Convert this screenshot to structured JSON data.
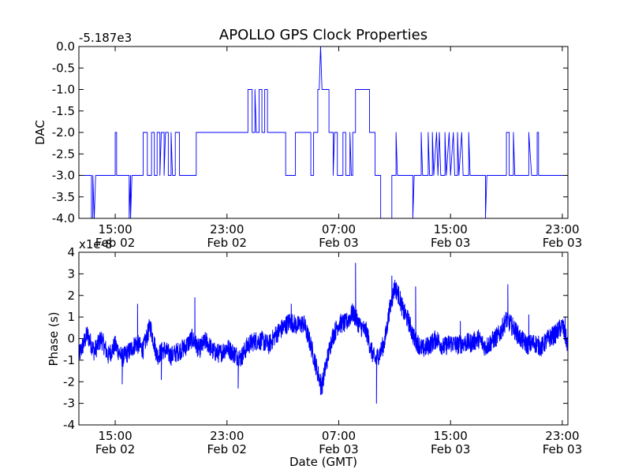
{
  "title": "APOLLO GPS Clock Properties",
  "chart_data": [
    {
      "type": "line",
      "name": "dac",
      "ylabel": "DAC",
      "offset_label": "-5.187e3",
      "ylim": [
        -4.0,
        0.0
      ],
      "yticks": [
        0.0,
        -0.5,
        -1.0,
        -1.5,
        -2.0,
        -2.5,
        -3.0,
        -3.5,
        -4.0
      ],
      "ytick_labels": [
        "0.0",
        "-0.5",
        "-1.0",
        "-1.5",
        "-2.0",
        "-2.5",
        "-3.0",
        "-3.5",
        "-4.0"
      ],
      "xlim_hours": [
        12.4,
        47.4
      ],
      "xticks_hours": [
        15,
        23,
        31,
        39,
        47
      ],
      "xtick_labels": [
        [
          "15:00",
          "Feb 02"
        ],
        [
          "23:00",
          "Feb 02"
        ],
        [
          "07:00",
          "Feb 03"
        ],
        [
          "15:00",
          "Feb 03"
        ],
        [
          "23:00",
          "Feb 03"
        ]
      ],
      "series": [
        {
          "name": "DAC",
          "color": "#0000ff",
          "points": [
            [
              12.4,
              -3
            ],
            [
              13.3,
              -3
            ],
            [
              13.3,
              -4
            ],
            [
              13.4,
              -4
            ],
            [
              13.4,
              -3
            ],
            [
              13.5,
              -4
            ],
            [
              13.6,
              -3
            ],
            [
              15.0,
              -3
            ],
            [
              15.0,
              -2
            ],
            [
              15.1,
              -2
            ],
            [
              15.1,
              -3
            ],
            [
              16.0,
              -3
            ],
            [
              16.0,
              -4
            ],
            [
              16.1,
              -3
            ],
            [
              16.1,
              -4
            ],
            [
              16.2,
              -3
            ],
            [
              17.0,
              -3
            ],
            [
              17.0,
              -2
            ],
            [
              17.3,
              -2
            ],
            [
              17.3,
              -3
            ],
            [
              17.6,
              -3
            ],
            [
              17.6,
              -2
            ],
            [
              17.8,
              -2
            ],
            [
              17.8,
              -3
            ],
            [
              18.0,
              -3
            ],
            [
              18.0,
              -2
            ],
            [
              18.2,
              -2
            ],
            [
              18.2,
              -3
            ],
            [
              18.3,
              -2
            ],
            [
              18.5,
              -2
            ],
            [
              18.5,
              -3
            ],
            [
              18.6,
              -2
            ],
            [
              18.8,
              -2
            ],
            [
              18.8,
              -3
            ],
            [
              19.0,
              -3
            ],
            [
              19.0,
              -2
            ],
            [
              19.1,
              -3
            ],
            [
              19.3,
              -3
            ],
            [
              19.3,
              -2
            ],
            [
              19.6,
              -2
            ],
            [
              19.6,
              -3
            ],
            [
              20.8,
              -3
            ],
            [
              20.8,
              -2
            ],
            [
              23.0,
              -2
            ],
            [
              23.0,
              -2
            ],
            [
              24.5,
              -2
            ],
            [
              24.5,
              -1
            ],
            [
              24.8,
              -1
            ],
            [
              24.8,
              -2
            ],
            [
              25.0,
              -2
            ],
            [
              25.0,
              -1
            ],
            [
              25.1,
              -2
            ],
            [
              25.3,
              -2
            ],
            [
              25.3,
              -1
            ],
            [
              25.5,
              -1
            ],
            [
              25.5,
              -2
            ],
            [
              25.7,
              -2
            ],
            [
              25.7,
              -1
            ],
            [
              25.9,
              -1
            ],
            [
              25.9,
              -2
            ],
            [
              27.2,
              -2
            ],
            [
              27.2,
              -3
            ],
            [
              27.9,
              -3
            ],
            [
              27.9,
              -2
            ],
            [
              29.0,
              -2
            ],
            [
              29.0,
              -3
            ],
            [
              29.2,
              -3
            ],
            [
              29.2,
              -2
            ],
            [
              29.5,
              -2
            ],
            [
              29.5,
              -1
            ],
            [
              29.6,
              -1
            ],
            [
              29.7,
              0
            ],
            [
              29.8,
              -1
            ],
            [
              30.3,
              -1
            ],
            [
              30.3,
              -2
            ],
            [
              30.6,
              -2
            ],
            [
              30.6,
              -3
            ],
            [
              30.7,
              -2
            ],
            [
              30.9,
              -2
            ],
            [
              30.9,
              -3
            ],
            [
              31.3,
              -3
            ],
            [
              31.3,
              -2
            ],
            [
              31.5,
              -2
            ],
            [
              31.5,
              -3
            ],
            [
              31.8,
              -3
            ],
            [
              31.8,
              -2
            ],
            [
              31.9,
              -3
            ],
            [
              32.0,
              -3
            ],
            [
              32.0,
              -2
            ],
            [
              32.2,
              -2
            ],
            [
              32.2,
              -1
            ],
            [
              33.2,
              -1
            ],
            [
              33.2,
              -2
            ],
            [
              33.6,
              -2
            ],
            [
              33.6,
              -3
            ],
            [
              34.0,
              -3
            ],
            [
              34.0,
              -4
            ],
            [
              34.8,
              -4
            ],
            [
              34.8,
              -3
            ],
            [
              35.1,
              -3
            ],
            [
              35.1,
              -2
            ],
            [
              35.2,
              -3
            ],
            [
              36.3,
              -3
            ],
            [
              36.3,
              -4
            ],
            [
              36.4,
              -3
            ],
            [
              36.9,
              -3
            ],
            [
              36.9,
              -2
            ],
            [
              37.0,
              -3
            ],
            [
              37.4,
              -3
            ],
            [
              37.4,
              -2
            ],
            [
              37.5,
              -3
            ],
            [
              37.7,
              -3
            ],
            [
              37.7,
              -2
            ],
            [
              37.8,
              -3
            ],
            [
              38.0,
              -2
            ],
            [
              38.1,
              -3
            ],
            [
              38.2,
              -2
            ],
            [
              38.3,
              -3
            ],
            [
              38.6,
              -3
            ],
            [
              38.6,
              -2
            ],
            [
              38.7,
              -3
            ],
            [
              38.9,
              -2
            ],
            [
              39.0,
              -3
            ],
            [
              39.2,
              -2
            ],
            [
              39.3,
              -3
            ],
            [
              39.5,
              -3
            ],
            [
              39.5,
              -2
            ],
            [
              39.6,
              -3
            ],
            [
              39.8,
              -2
            ],
            [
              39.9,
              -3
            ],
            [
              40.3,
              -3
            ],
            [
              40.3,
              -2
            ],
            [
              40.4,
              -3
            ],
            [
              41.5,
              -3
            ],
            [
              41.5,
              -4
            ],
            [
              41.6,
              -3
            ],
            [
              43.0,
              -3
            ],
            [
              43.0,
              -2
            ],
            [
              43.2,
              -2
            ],
            [
              43.2,
              -3
            ],
            [
              43.5,
              -3
            ],
            [
              43.5,
              -2
            ],
            [
              43.6,
              -3
            ],
            [
              44.6,
              -3
            ],
            [
              44.6,
              -2
            ],
            [
              44.8,
              -3
            ],
            [
              45.2,
              -3
            ],
            [
              45.2,
              -2
            ],
            [
              45.3,
              -2
            ],
            [
              45.3,
              -3
            ],
            [
              47.4,
              -3
            ]
          ]
        }
      ]
    },
    {
      "type": "line",
      "name": "phase",
      "ylabel": "Phase (s)",
      "xlabel": "Date (GMT)",
      "offset_label": "x1e-8",
      "ylim": [
        -4,
        4
      ],
      "yticks": [
        4,
        3,
        2,
        1,
        0,
        -1,
        -2,
        -3,
        -4
      ],
      "ytick_labels": [
        "4",
        "3",
        "2",
        "1",
        "0",
        "-1",
        "-2",
        "-3",
        "-4"
      ],
      "xlim_hours": [
        12.4,
        47.4
      ],
      "xticks_hours": [
        15,
        23,
        31,
        39,
        47
      ],
      "xtick_labels": [
        [
          "15:00",
          "Feb 02"
        ],
        [
          "23:00",
          "Feb 02"
        ],
        [
          "07:00",
          "Feb 03"
        ],
        [
          "15:00",
          "Feb 03"
        ],
        [
          "23:00",
          "Feb 03"
        ]
      ],
      "series": [
        {
          "name": "Phase",
          "color": "#0000ff",
          "noise": 0.45,
          "anchors": [
            [
              12.4,
              -0.8
            ],
            [
              13.0,
              0.2
            ],
            [
              13.5,
              -0.6
            ],
            [
              14.0,
              0.0
            ],
            [
              14.5,
              -0.8
            ],
            [
              15.0,
              -0.3
            ],
            [
              15.5,
              -0.9
            ],
            [
              16.0,
              -0.6
            ],
            [
              16.5,
              -0.2
            ],
            [
              17.0,
              -0.5
            ],
            [
              17.5,
              0.6
            ],
            [
              18.0,
              -0.8
            ],
            [
              18.5,
              -0.5
            ],
            [
              19.0,
              -0.8
            ],
            [
              19.5,
              -0.6
            ],
            [
              20.0,
              -0.4
            ],
            [
              20.5,
              0.0
            ],
            [
              21.0,
              -0.5
            ],
            [
              21.5,
              -0.1
            ],
            [
              22.0,
              -0.6
            ],
            [
              22.5,
              -0.7
            ],
            [
              23.0,
              -0.4
            ],
            [
              23.5,
              -0.7
            ],
            [
              24.0,
              -0.9
            ],
            [
              24.5,
              -0.3
            ],
            [
              25.0,
              -0.1
            ],
            [
              25.5,
              -0.1
            ],
            [
              26.0,
              -0.3
            ],
            [
              26.5,
              0.2
            ],
            [
              27.0,
              0.5
            ],
            [
              27.5,
              0.8
            ],
            [
              28.0,
              0.6
            ],
            [
              28.5,
              0.7
            ],
            [
              29.0,
              -0.3
            ],
            [
              29.5,
              -1.6
            ],
            [
              29.8,
              -2.2
            ],
            [
              30.0,
              -1.5
            ],
            [
              30.5,
              0.0
            ],
            [
              31.0,
              0.7
            ],
            [
              31.5,
              0.7
            ],
            [
              32.0,
              1.2
            ],
            [
              32.5,
              0.6
            ],
            [
              33.0,
              0.3
            ],
            [
              33.3,
              -0.5
            ],
            [
              33.6,
              -1.0
            ],
            [
              34.0,
              -0.6
            ],
            [
              34.3,
              -0.1
            ],
            [
              34.6,
              1.2
            ],
            [
              35.0,
              2.4
            ],
            [
              35.3,
              2.0
            ],
            [
              35.6,
              1.3
            ],
            [
              36.0,
              0.8
            ],
            [
              36.4,
              0.0
            ],
            [
              37.0,
              -0.5
            ],
            [
              37.5,
              -0.3
            ],
            [
              38.0,
              0.0
            ],
            [
              38.5,
              -0.4
            ],
            [
              39.0,
              -0.2
            ],
            [
              39.5,
              -0.3
            ],
            [
              40.0,
              -0.2
            ],
            [
              40.5,
              -0.2
            ],
            [
              41.0,
              0.0
            ],
            [
              41.5,
              -0.4
            ],
            [
              42.0,
              -0.1
            ],
            [
              42.5,
              0.2
            ],
            [
              43.0,
              0.9
            ],
            [
              43.5,
              0.5
            ],
            [
              44.0,
              0.0
            ],
            [
              44.5,
              -0.3
            ],
            [
              45.0,
              -0.2
            ],
            [
              45.5,
              -0.4
            ],
            [
              46.0,
              0.0
            ],
            [
              46.5,
              0.2
            ],
            [
              47.0,
              0.6
            ],
            [
              47.4,
              -0.3
            ]
          ],
          "spikes": [
            [
              15.5,
              -2.1
            ],
            [
              16.6,
              1.6
            ],
            [
              18.3,
              -1.9
            ],
            [
              20.7,
              1.9
            ],
            [
              23.8,
              -2.3
            ],
            [
              27.6,
              1.6
            ],
            [
              29.7,
              -2.6
            ],
            [
              32.2,
              3.5
            ],
            [
              33.7,
              -3.0
            ],
            [
              34.8,
              2.9
            ],
            [
              36.5,
              2.4
            ],
            [
              39.7,
              0.8
            ],
            [
              43.1,
              2.5
            ],
            [
              44.6,
              1.1
            ],
            [
              47.2,
              1.0
            ]
          ]
        }
      ]
    }
  ]
}
